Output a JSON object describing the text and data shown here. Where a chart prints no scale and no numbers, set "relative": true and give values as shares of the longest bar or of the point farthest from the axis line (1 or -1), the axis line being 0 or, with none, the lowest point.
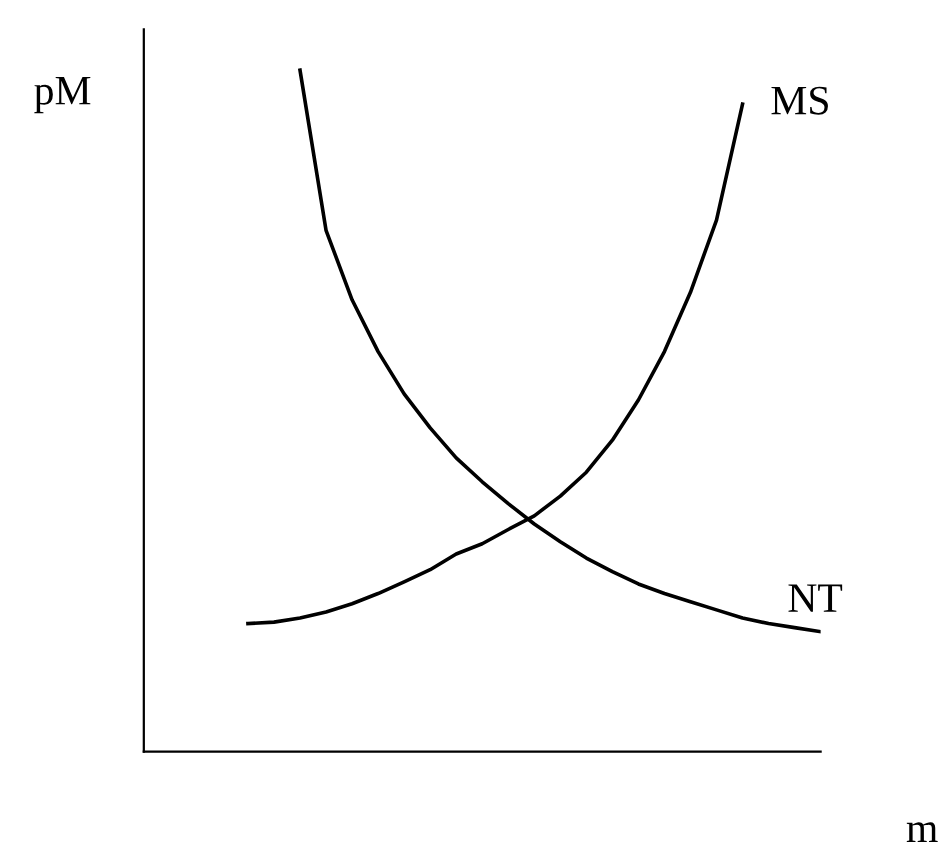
{
  "chart_data": {
    "type": "line",
    "relative": true,
    "xlabel": "m",
    "ylabel": "pM",
    "marker": "none",
    "line_style": "solid",
    "legend": false,
    "tick_labels": false,
    "categories": [
      null,
      null,
      null,
      null,
      null,
      null,
      null,
      null,
      null,
      null,
      null,
      null,
      null,
      null,
      null,
      null,
      null,
      null,
      null,
      null,
      null,
      null,
      null,
      null,
      null,
      null,
      null
    ],
    "series": [
      {
        "name": "MS",
        "color": "#000000",
        "values": [
          null,
          null,
          null,
          null,
          0.188,
          0.19,
          0.196,
          0.205,
          0.217,
          0.232,
          0.249,
          0.267,
          0.29,
          0.305,
          0.326,
          0.346,
          0.375,
          0.41,
          0.457,
          0.516,
          0.587,
          0.674,
          0.78,
          0.95,
          null,
          null,
          null
        ]
      },
      {
        "name": "NT",
        "color": "#000000",
        "values": [
          null,
          null,
          null,
          null,
          null,
          null,
          1.0,
          0.765,
          0.663,
          0.587,
          0.525,
          0.475,
          0.431,
          0.396,
          0.364,
          0.334,
          0.308,
          0.284,
          0.264,
          0.246,
          0.232,
          0.22,
          0.208,
          0.196,
          0.188,
          0.182,
          0.176
        ]
      }
    ]
  }
}
